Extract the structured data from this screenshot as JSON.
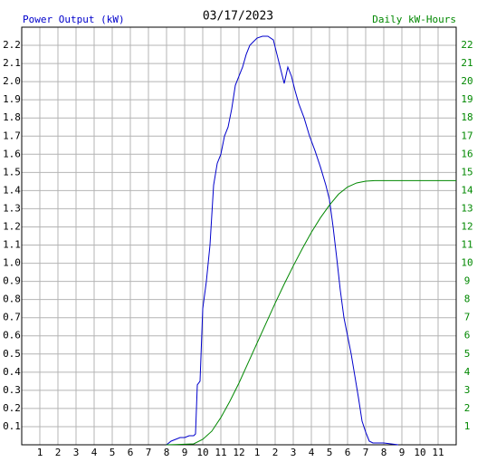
{
  "chart_data": {
    "type": "line",
    "title": "03/17/2023",
    "y_label": "Power Output (kW)",
    "y2_label": "Daily kW-Hours",
    "xlim": [
      0,
      24
    ],
    "xticks": [
      1,
      2,
      3,
      4,
      5,
      6,
      7,
      8,
      9,
      10,
      11,
      12,
      {
        "value": 13,
        "label": "1"
      },
      {
        "value": 14,
        "label": "2"
      },
      {
        "value": 15,
        "label": "3"
      },
      {
        "value": 16,
        "label": "4"
      },
      {
        "value": 17,
        "label": "5"
      },
      {
        "value": 18,
        "label": "6"
      },
      {
        "value": 19,
        "label": "7"
      },
      {
        "value": 20,
        "label": "8"
      },
      {
        "value": 21,
        "label": "9"
      },
      {
        "value": 22,
        "label": "10"
      },
      {
        "value": 23,
        "label": "11"
      }
    ],
    "ylim": [
      0,
      2.3
    ],
    "yticks": [
      0.1,
      0.2,
      0.3,
      0.4,
      0.5,
      0.6,
      0.7,
      0.8,
      0.9,
      {
        "value": 1,
        "label": "1.0"
      },
      1.1,
      1.2,
      1.3,
      1.4,
      1.5,
      1.6,
      1.7,
      1.8,
      1.9,
      {
        "value": 2,
        "label": "2.0"
      },
      2.1,
      2.2
    ],
    "y2lim": [
      0,
      23
    ],
    "y2ticks": [
      1,
      2,
      3,
      4,
      5,
      6,
      7,
      8,
      9,
      10,
      11,
      12,
      13,
      14,
      15,
      16,
      17,
      18,
      19,
      20,
      21,
      22
    ],
    "grid": true,
    "series": [
      {
        "color": "#0000cc",
        "x": [
          8,
          8.25,
          8.5,
          8.75,
          9,
          9.25,
          9.5,
          9.6,
          9.7,
          9.85,
          10,
          10.2,
          10.4,
          10.6,
          10.8,
          11,
          11.2,
          11.4,
          11.6,
          11.8,
          12,
          12.2,
          12.4,
          12.6,
          12.8,
          13,
          13.3,
          13.6,
          13.9,
          14.1,
          14.3,
          14.5,
          14.7,
          14.9,
          15.1,
          15.3,
          15.6,
          15.9,
          16.2,
          16.5,
          16.8,
          17,
          17.2,
          17.4,
          17.6,
          17.8,
          18,
          18.2,
          18.4,
          18.6,
          18.8,
          19,
          19.2,
          19.4,
          20,
          20.8
        ],
        "values": [
          0,
          0.02,
          0.03,
          0.04,
          0.04,
          0.05,
          0.05,
          0.06,
          0.33,
          0.35,
          0.75,
          0.9,
          1.1,
          1.43,
          1.55,
          1.6,
          1.7,
          1.75,
          1.85,
          1.98,
          2.03,
          2.08,
          2.15,
          2.2,
          2.22,
          2.24,
          2.25,
          2.25,
          2.23,
          2.15,
          2.07,
          1.99,
          2.08,
          2.03,
          1.95,
          1.88,
          1.8,
          1.7,
          1.62,
          1.53,
          1.43,
          1.35,
          1.2,
          1.03,
          0.85,
          0.7,
          0.6,
          0.5,
          0.38,
          0.26,
          0.13,
          0.07,
          0.02,
          0.01,
          0.01,
          0
        ]
      },
      {
        "color": "#008800",
        "axis": "y2",
        "x": [
          8,
          8.5,
          9,
          9.5,
          10,
          10.5,
          11,
          11.5,
          12,
          12.5,
          13,
          13.5,
          14,
          14.5,
          15,
          15.5,
          16,
          16.5,
          17,
          17.5,
          18,
          18.5,
          19,
          19.5,
          24
        ],
        "values": [
          0,
          0.01,
          0.03,
          0.05,
          0.3,
          0.75,
          1.5,
          2.4,
          3.4,
          4.5,
          5.6,
          6.7,
          7.8,
          8.85,
          9.85,
          10.8,
          11.7,
          12.5,
          13.2,
          13.8,
          14.2,
          14.42,
          14.52,
          14.55,
          14.55
        ]
      }
    ]
  }
}
